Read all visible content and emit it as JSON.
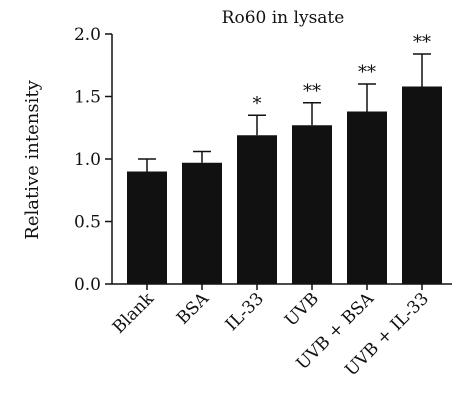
{
  "chart_data": {
    "type": "bar",
    "title": "Ro60 in lysate",
    "xlabel": "",
    "ylabel": "Relative intensity",
    "ylim": [
      0,
      2.0
    ],
    "yticks": [
      0.0,
      0.5,
      1.0,
      1.5,
      2.0
    ],
    "ytick_labels": [
      "0.0",
      "0.5",
      "1.0",
      "1.5",
      "2.0"
    ],
    "categories": [
      "Blank",
      "BSA",
      "IL-33",
      "UVB",
      "UVB + BSA",
      "UVB + IL-33"
    ],
    "values": [
      0.9,
      0.97,
      1.19,
      1.27,
      1.38,
      1.58
    ],
    "error_upper": [
      0.1,
      0.09,
      0.16,
      0.18,
      0.22,
      0.26
    ],
    "significance": [
      "",
      "",
      "*",
      "**",
      "**",
      "**"
    ],
    "bar_color": "#111111",
    "grid": false,
    "legend": "none"
  }
}
